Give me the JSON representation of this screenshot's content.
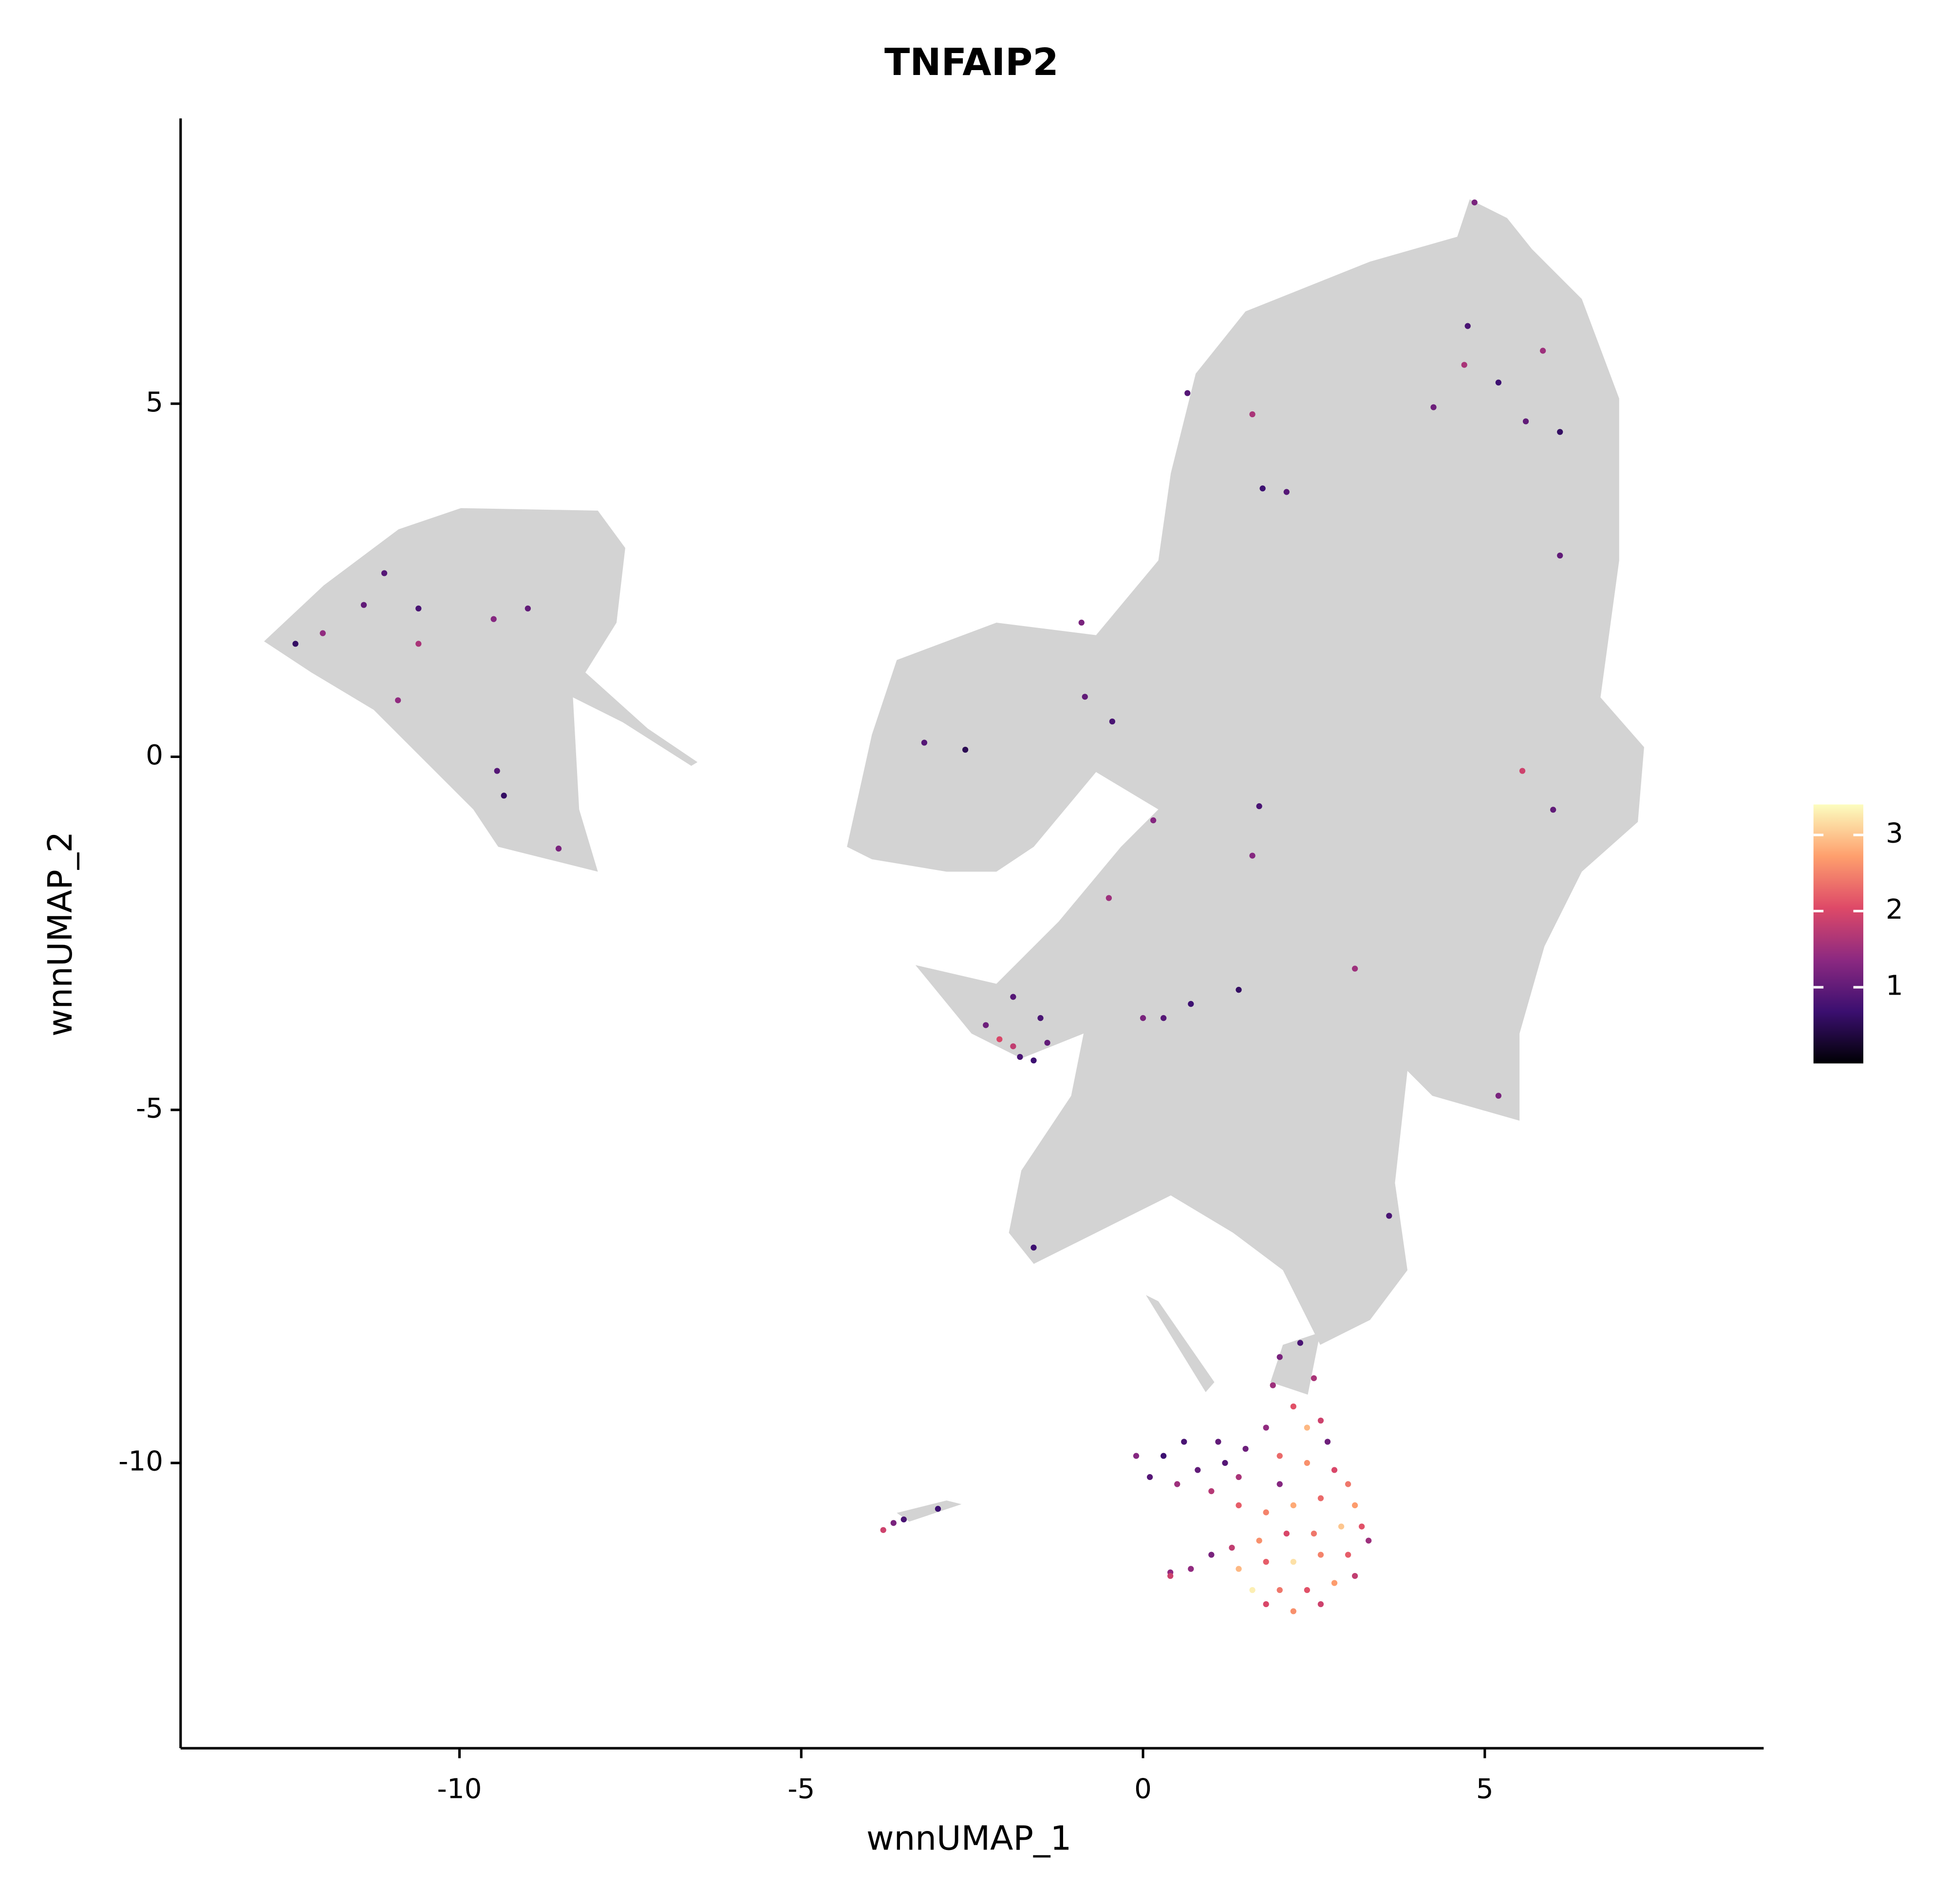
{
  "chart_data": {
    "type": "scatter",
    "title": "TNFAIP2",
    "x_label": "wnnUMAP_1",
    "y_label": "wnnUMAP_2",
    "xlim": [
      -14.08,
      9.08
    ],
    "ylim": [
      -14.04,
      9.04
    ],
    "xticks": [
      -10,
      -5,
      0,
      5
    ],
    "yticks": [
      -10,
      -5,
      0,
      5
    ],
    "background_color": "#d3d3d3",
    "colormap": [
      "#000004",
      "#3b0f70",
      "#8c2981",
      "#de4968",
      "#fe9f6d",
      "#fcfdbf"
    ],
    "clim": [
      0,
      3.4
    ],
    "colorbar_ticks": [
      1,
      2,
      3
    ],
    "x": [
      2.0,
      2.3,
      2.5,
      2.2,
      1.8,
      2.6,
      1.5,
      2.0,
      2.4,
      2.8,
      3.0,
      1.2,
      0.8,
      0.3,
      -0.1,
      0.1,
      0.5,
      1.0,
      1.4,
      1.8,
      2.2,
      2.6,
      3.1,
      3.2,
      2.9,
      2.5,
      2.1,
      1.7,
      1.3,
      1.0,
      0.7,
      0.4,
      1.4,
      1.8,
      2.2,
      2.6,
      3.0,
      3.1,
      2.8,
      2.4,
      2.0,
      1.6,
      1.8,
      2.2,
      2.6,
      1.4,
      2.0,
      2.7,
      1.9,
      2.4,
      1.1,
      0.6,
      3.3,
      -3.8,
      -3.65,
      -3.5,
      -3.0,
      -12.4,
      -12.0,
      -11.4,
      -11.1,
      -10.6,
      -10.6,
      -10.9,
      -9.5,
      -9.0,
      -9.45,
      -9.35,
      -8.55,
      -3.2,
      -2.6,
      -0.9,
      -0.85,
      -0.45,
      0.15,
      -0.5,
      -2.3,
      -2.1,
      -1.9,
      -1.8,
      -1.6,
      -1.4,
      -1.9,
      -1.5,
      0.0,
      0.3,
      0.7,
      1.4,
      1.6,
      1.7,
      3.1,
      5.2,
      5.55,
      6.0,
      6.1,
      0.65,
      1.6,
      1.75,
      2.1,
      4.25,
      4.7,
      4.75,
      5.2,
      5.6,
      5.85,
      6.1,
      4.85,
      3.6,
      -1.6,
      0.4
    ],
    "y": [
      -8.5,
      -8.3,
      -8.8,
      -9.2,
      -9.5,
      -9.4,
      -9.8,
      -9.9,
      -10.0,
      -10.1,
      -10.3,
      -10.0,
      -10.1,
      -9.9,
      -9.9,
      -10.2,
      -10.3,
      -10.4,
      -10.6,
      -10.7,
      -10.6,
      -10.5,
      -10.6,
      -10.9,
      -10.9,
      -11.0,
      -11.0,
      -11.1,
      -11.2,
      -11.3,
      -11.5,
      -11.6,
      -11.5,
      -11.4,
      -11.4,
      -11.3,
      -11.3,
      -11.6,
      -11.7,
      -11.8,
      -11.8,
      -11.8,
      -12.0,
      -12.1,
      -12.0,
      -10.2,
      -10.3,
      -9.7,
      -8.9,
      -9.5,
      -9.7,
      -9.7,
      -11.1,
      -10.95,
      -10.85,
      -10.8,
      -10.65,
      1.6,
      1.75,
      2.15,
      2.6,
      2.1,
      1.6,
      0.8,
      1.95,
      2.1,
      -0.2,
      -0.55,
      -1.3,
      0.2,
      0.1,
      1.9,
      0.85,
      0.5,
      -0.9,
      -2.0,
      -3.8,
      -4.0,
      -4.1,
      -4.25,
      -4.3,
      -4.05,
      -3.4,
      -3.7,
      -3.7,
      -3.7,
      -3.5,
      -3.3,
      -1.4,
      -0.7,
      -3.0,
      -4.8,
      -0.2,
      -0.75,
      2.85,
      5.15,
      4.85,
      3.8,
      3.75,
      4.95,
      5.55,
      6.1,
      5.3,
      4.75,
      5.75,
      4.6,
      7.85,
      -6.5,
      -6.95,
      -11.55
    ],
    "values": [
      1.2,
      0.8,
      1.6,
      2.1,
      1.4,
      1.9,
      1.1,
      2.3,
      2.6,
      2.0,
      2.4,
      0.9,
      1.0,
      0.7,
      1.3,
      0.9,
      1.5,
      1.7,
      2.2,
      2.5,
      2.8,
      2.3,
      2.7,
      2.1,
      3.0,
      2.4,
      2.0,
      2.6,
      1.8,
      1.2,
      1.4,
      1.9,
      2.9,
      2.2,
      3.2,
      2.5,
      2.2,
      1.8,
      2.7,
      2.1,
      2.4,
      3.3,
      2.0,
      2.6,
      1.9,
      1.6,
      1.3,
      1.1,
      1.5,
      2.9,
      1.0,
      0.8,
      1.5,
      1.9,
      1.2,
      0.8,
      0.7,
      0.6,
      1.4,
      1.0,
      0.9,
      0.8,
      1.6,
      1.4,
      1.3,
      1.0,
      0.9,
      0.6,
      1.2,
      0.9,
      0.5,
      1.2,
      1.0,
      0.8,
      1.3,
      1.5,
      1.1,
      2.0,
      1.8,
      0.8,
      0.7,
      1.0,
      0.9,
      0.8,
      1.2,
      0.9,
      0.7,
      0.6,
      1.3,
      0.8,
      1.5,
      1.2,
      1.9,
      1.0,
      1.0,
      0.9,
      1.6,
      0.7,
      0.9,
      1.1,
      1.6,
      0.8,
      0.7,
      1.0,
      1.5,
      0.6,
      1.2,
      0.8,
      0.7,
      1.4
    ]
  }
}
